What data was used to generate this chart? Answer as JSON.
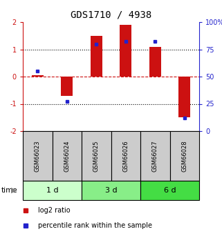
{
  "title": "GDS1710 / 4938",
  "samples": [
    "GSM66023",
    "GSM66024",
    "GSM66025",
    "GSM66026",
    "GSM66027",
    "GSM66028"
  ],
  "log2_ratio": [
    0.05,
    -0.7,
    1.5,
    1.9,
    1.1,
    -1.5
  ],
  "percentile": [
    55,
    27,
    80,
    82,
    82,
    12
  ],
  "time_groups": [
    {
      "label": "1 d",
      "start": 0,
      "end": 2,
      "color": "#ccffcc"
    },
    {
      "label": "3 d",
      "start": 2,
      "end": 4,
      "color": "#88ee88"
    },
    {
      "label": "6 d",
      "start": 4,
      "end": 6,
      "color": "#44dd44"
    }
  ],
  "left_ylim": [
    -2,
    2
  ],
  "right_ylim": [
    0,
    100
  ],
  "bar_color": "#cc1111",
  "marker_color": "#2222cc",
  "bar_width": 0.4,
  "sample_box_color": "#cccccc",
  "title_fontsize": 10,
  "tick_fontsize": 7,
  "legend_fontsize": 7
}
